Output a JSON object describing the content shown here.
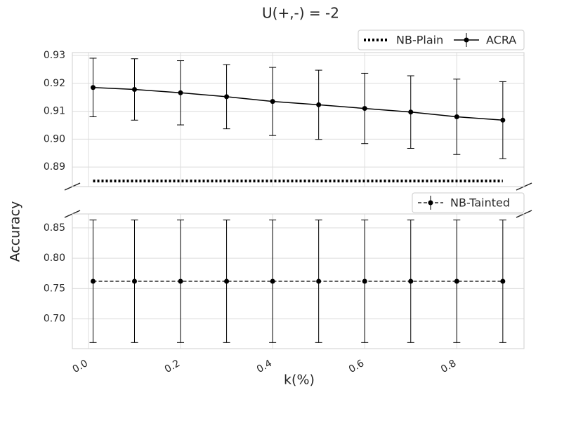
{
  "figure": {
    "title": "U(+,-) = -2",
    "xlabel": "k(%)",
    "ylabel": "Accuracy"
  },
  "chart_data": [
    {
      "type": "line",
      "legend": "upper right",
      "x": [
        0.01,
        0.1,
        0.2,
        0.3,
        0.4,
        0.5,
        0.6,
        0.7,
        0.8,
        0.9
      ],
      "ylim": [
        0.883,
        0.931
      ],
      "yticks": [
        0.89,
        {
          "value": 0.9,
          "label": "0.90"
        },
        0.91,
        0.92,
        0.93
      ],
      "grid": true,
      "series": [
        {
          "name": "NB-Plain",
          "color": "#000000",
          "style": "dotted",
          "values": [
            0.885,
            0.885,
            0.885,
            0.885,
            0.885,
            0.885,
            0.885,
            0.885,
            0.885,
            0.885
          ]
        },
        {
          "name": "ACRA",
          "color": "#000000",
          "style": "solid",
          "marker": true,
          "values": [
            0.9185,
            0.9178,
            0.9166,
            0.9152,
            0.9135,
            0.9123,
            0.911,
            0.9097,
            0.908,
            0.9068
          ],
          "errors": [
            0.0105,
            0.011,
            0.0115,
            0.0115,
            0.0122,
            0.0124,
            0.0126,
            0.013,
            0.0135,
            0.0138
          ]
        }
      ]
    },
    {
      "type": "line",
      "legend": "upper right",
      "x": [
        0.01,
        0.1,
        0.2,
        0.3,
        0.4,
        0.5,
        0.6,
        0.7,
        0.8,
        0.9
      ],
      "xlim": [
        -0.035,
        0.946
      ],
      "xticks": [
        {
          "value": 0,
          "label": "0.0"
        },
        0.2,
        0.4,
        0.6,
        0.8
      ],
      "ylim": [
        0.651,
        0.873
      ],
      "yticks": [
        {
          "value": 0.7,
          "label": "0.70"
        },
        0.75,
        {
          "value": 0.8,
          "label": "0.80"
        },
        0.85
      ],
      "grid": true,
      "series": [
        {
          "name": "NB-Tainted",
          "color": "#000000",
          "style": "dashed",
          "marker": true,
          "values": [
            0.762,
            0.762,
            0.762,
            0.762,
            0.762,
            0.762,
            0.762,
            0.762,
            0.762,
            0.762
          ],
          "errors": [
            0.101,
            0.101,
            0.101,
            0.101,
            0.101,
            0.101,
            0.101,
            0.101,
            0.101,
            0.101
          ]
        }
      ]
    }
  ]
}
